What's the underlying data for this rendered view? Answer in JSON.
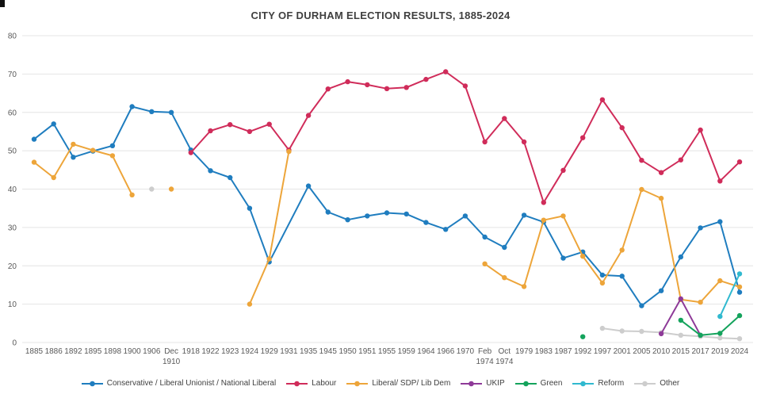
{
  "title": "CITY OF DURHAM ELECTION RESULTS, 1885-2024",
  "chart_data": {
    "type": "line",
    "title": "CITY OF DURHAM ELECTION RESULTS, 1885-2024",
    "xlabel": "",
    "ylabel": "",
    "ylim": [
      0,
      80
    ],
    "yticks": [
      0,
      10,
      20,
      30,
      40,
      50,
      60,
      70,
      80
    ],
    "grid": true,
    "legend_position": "bottom",
    "categories": [
      "1885",
      "1886",
      "1892",
      "1895",
      "1898",
      "1900",
      "1906",
      "Dec\n1910",
      "1918",
      "1922",
      "1923",
      "1924",
      "1929",
      "1931",
      "1935",
      "1945",
      "1950",
      "1951",
      "1955",
      "1959",
      "1964",
      "1966",
      "1970",
      "Feb\n1974",
      "Oct\n1974",
      "1979",
      "1983",
      "1987",
      "1992",
      "1997",
      "2001",
      "2005",
      "2010",
      "2015",
      "2017",
      "2019",
      "2024"
    ],
    "series": [
      {
        "name": "Conservative / Liberal Unionist / National Liberal",
        "color": "#1f7dbf",
        "connect_nulls": true,
        "values": [
          53.0,
          57.0,
          48.3,
          49.9,
          51.3,
          61.5,
          60.2,
          60.0,
          50.2,
          44.8,
          43.0,
          35.0,
          21.0,
          null,
          40.8,
          34.0,
          32.0,
          33.0,
          33.8,
          33.5,
          31.3,
          29.5,
          33.0,
          27.5,
          24.8,
          33.2,
          31.4,
          22.0,
          23.6,
          17.6,
          17.3,
          9.6,
          13.5,
          22.3,
          29.9,
          31.5,
          13.1
        ]
      },
      {
        "name": "Labour",
        "color": "#d02c5a",
        "connect_nulls": false,
        "values": [
          null,
          null,
          null,
          null,
          null,
          null,
          null,
          null,
          49.5,
          55.2,
          56.8,
          55.0,
          56.9,
          50.2,
          59.2,
          66.1,
          68.0,
          67.2,
          66.2,
          66.5,
          68.6,
          70.6,
          66.9,
          52.3,
          58.4,
          52.3,
          36.5,
          44.9,
          53.4,
          63.3,
          56.0,
          47.5,
          44.3,
          47.6,
          55.4,
          42.1,
          47.1
        ]
      },
      {
        "name": "Liberal/ SDP/ Lib Dem",
        "color": "#eda53a",
        "connect_nulls": false,
        "values": [
          47.0,
          43.0,
          51.7,
          50.1,
          48.7,
          38.5,
          null,
          40.0,
          null,
          null,
          null,
          10.0,
          21.8,
          49.8,
          null,
          null,
          null,
          null,
          null,
          null,
          null,
          null,
          null,
          20.5,
          16.9,
          14.6,
          31.9,
          33.0,
          22.5,
          15.5,
          24.1,
          39.9,
          37.6,
          11.2,
          10.5,
          16.1,
          14.5
        ]
      },
      {
        "name": "UKIP",
        "color": "#8e3a98",
        "connect_nulls": false,
        "values": [
          null,
          null,
          null,
          null,
          null,
          null,
          null,
          null,
          null,
          null,
          null,
          null,
          null,
          null,
          null,
          null,
          null,
          null,
          null,
          null,
          null,
          null,
          null,
          null,
          null,
          null,
          null,
          null,
          null,
          null,
          null,
          null,
          2.3,
          11.4,
          1.9,
          null,
          null
        ]
      },
      {
        "name": "Green",
        "color": "#14a35c",
        "connect_nulls": false,
        "values": [
          null,
          null,
          null,
          null,
          null,
          null,
          null,
          null,
          null,
          null,
          null,
          null,
          null,
          null,
          null,
          null,
          null,
          null,
          null,
          null,
          null,
          null,
          null,
          null,
          null,
          null,
          null,
          null,
          1.5,
          null,
          null,
          null,
          null,
          5.8,
          1.9,
          2.4,
          7.0
        ]
      },
      {
        "name": "Reform",
        "color": "#30b9cf",
        "connect_nulls": false,
        "values": [
          null,
          null,
          null,
          null,
          null,
          null,
          null,
          null,
          null,
          null,
          null,
          null,
          null,
          null,
          null,
          null,
          null,
          null,
          null,
          null,
          null,
          null,
          null,
          null,
          null,
          null,
          null,
          null,
          null,
          null,
          null,
          null,
          null,
          null,
          null,
          6.8,
          17.9
        ]
      },
      {
        "name": "Other",
        "color": "#cdcdcd",
        "connect_nulls": false,
        "values": [
          null,
          null,
          null,
          null,
          null,
          null,
          40.0,
          null,
          null,
          null,
          null,
          null,
          null,
          null,
          null,
          null,
          null,
          null,
          null,
          null,
          null,
          null,
          null,
          null,
          null,
          null,
          null,
          null,
          null,
          3.7,
          3.0,
          2.9,
          2.6,
          1.9,
          1.6,
          1.2,
          1.0
        ]
      }
    ]
  }
}
